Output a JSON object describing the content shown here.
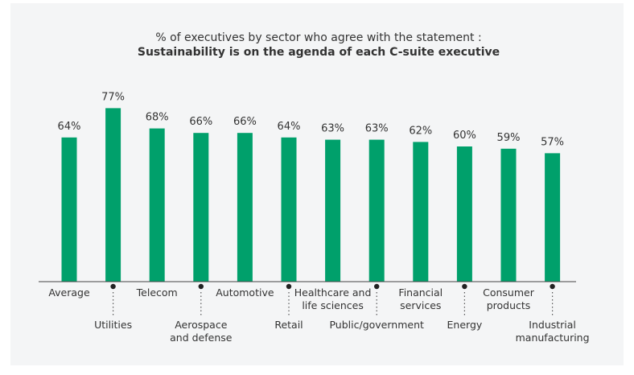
{
  "chart_data": {
    "type": "bar",
    "title": "% of executives by sector who agree with the statement :",
    "subtitle": "Sustainability is on the agenda of each C-suite executive",
    "xlabel": "",
    "ylabel": "",
    "ylim": [
      0,
      100
    ],
    "categories": [
      "Average",
      "Utilities",
      "Telecom",
      "Aerospace and defense",
      "Automotive",
      "Retail",
      "Healthcare and life sciences",
      "Public/government",
      "Financial services",
      "Energy",
      "Consumer products",
      "Industrial manufacturing"
    ],
    "category_lines": [
      [
        "Average"
      ],
      [
        "Utilities"
      ],
      [
        "Telecom"
      ],
      [
        "Aerospace",
        "and defense"
      ],
      [
        "Automotive"
      ],
      [
        "Retail"
      ],
      [
        "Healthcare and",
        "life sciences"
      ],
      [
        "Public/government"
      ],
      [
        "Financial",
        "services"
      ],
      [
        "Energy"
      ],
      [
        "Consumer",
        "products"
      ],
      [
        "Industrial",
        "manufacturing"
      ]
    ],
    "label_position": [
      "upper",
      "lower",
      "upper",
      "lower",
      "upper",
      "lower",
      "upper",
      "lower",
      "upper",
      "lower",
      "upper",
      "lower"
    ],
    "values": [
      64,
      77,
      68,
      66,
      66,
      64,
      63,
      63,
      62,
      60,
      59,
      57
    ],
    "data_labels": [
      "64%",
      "77%",
      "68%",
      "66%",
      "66%",
      "64%",
      "63%",
      "63%",
      "62%",
      "60%",
      "59%",
      "57%"
    ],
    "grid": false,
    "legend": "none"
  },
  "colors": {
    "bar": "#00a06b",
    "axis": "#444444",
    "text": "#333333",
    "background": "#f4f5f6"
  }
}
